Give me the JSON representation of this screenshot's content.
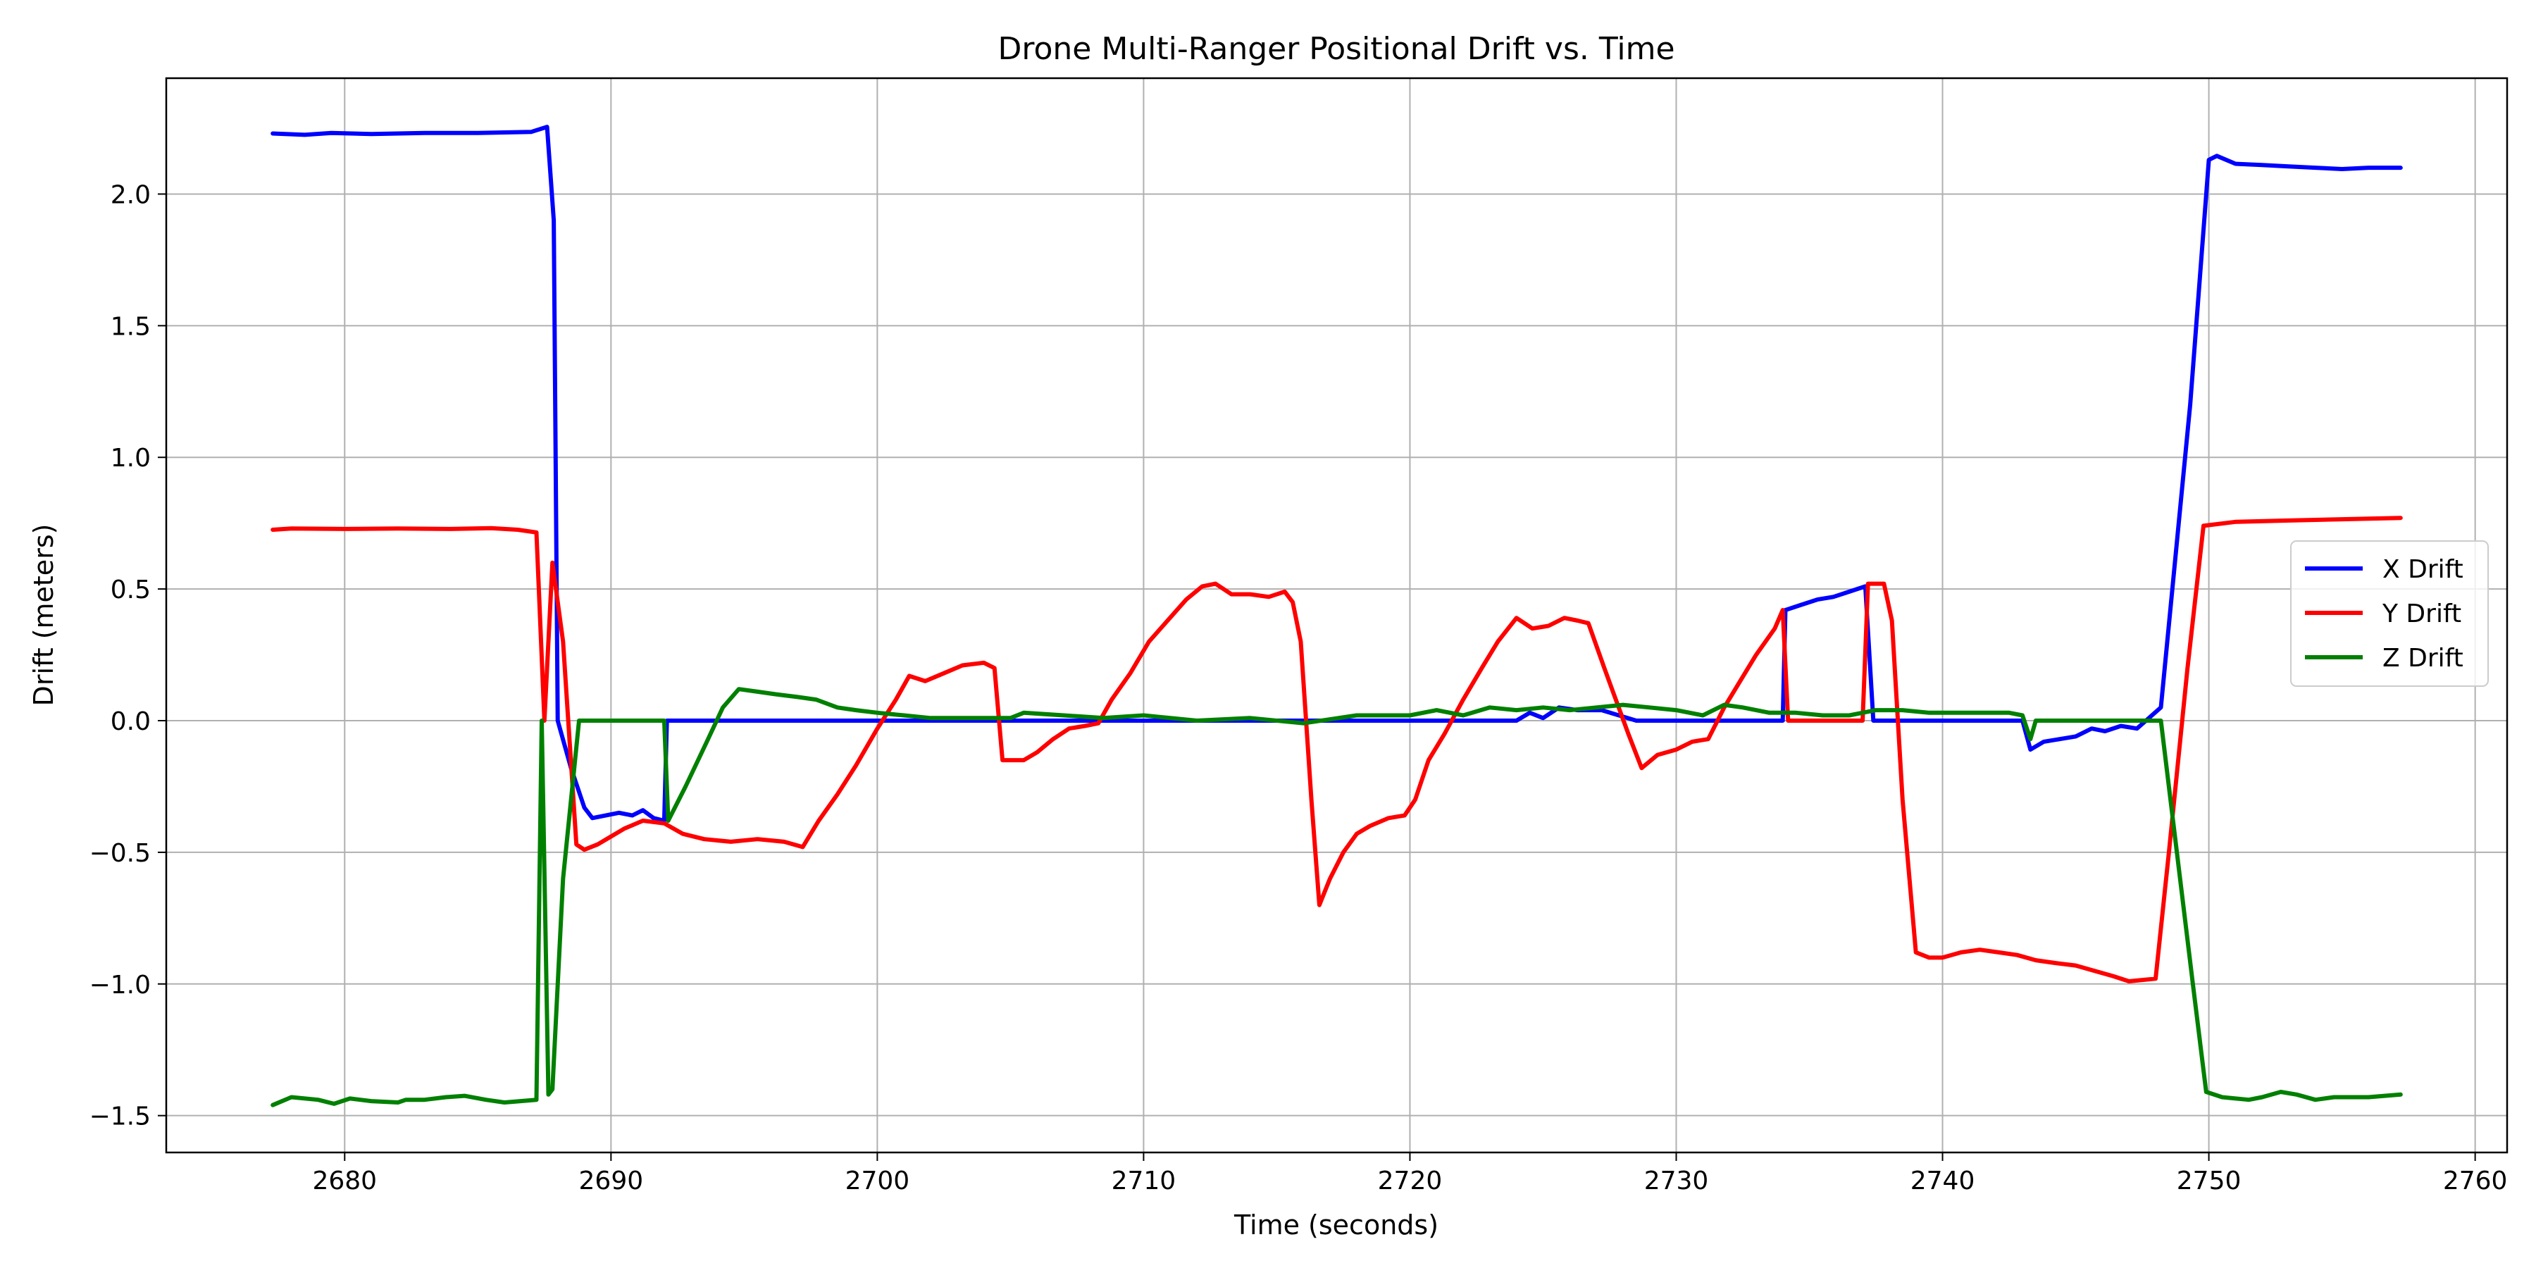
{
  "chart_data": {
    "type": "line",
    "title": "Drone Multi-Ranger Positional Drift vs. Time",
    "xlabel": "Time (seconds)",
    "ylabel": "Drift (meters)",
    "xlim": [
      2673.3,
      2761.2
    ],
    "ylim": [
      -1.64,
      2.44
    ],
    "x_ticks": [
      2680,
      2690,
      2700,
      2710,
      2720,
      2730,
      2740,
      2750,
      2760
    ],
    "y_ticks": [
      -1.5,
      -1.0,
      -0.5,
      0.0,
      0.5,
      1.0,
      1.5,
      2.0
    ],
    "x_tick_labels": [
      "2680",
      "2690",
      "2700",
      "2710",
      "2720",
      "2730",
      "2740",
      "2750",
      "2760"
    ],
    "y_tick_labels": [
      "−1.5",
      "−1.0",
      "−0.5",
      "0.0",
      "0.5",
      "1.0",
      "1.5",
      "2.0"
    ],
    "grid": true,
    "legend_position": "center-right",
    "series": [
      {
        "name": "X Drift",
        "color": "#0000ff",
        "points": [
          [
            2677.3,
            2.23
          ],
          [
            2678.5,
            2.225
          ],
          [
            2679.5,
            2.232
          ],
          [
            2681.0,
            2.228
          ],
          [
            2683.0,
            2.232
          ],
          [
            2685.0,
            2.232
          ],
          [
            2687.0,
            2.236
          ],
          [
            2687.6,
            2.255
          ],
          [
            2687.85,
            1.9
          ],
          [
            2688.0,
            0.0
          ],
          [
            2688.5,
            -0.18
          ],
          [
            2689.0,
            -0.33
          ],
          [
            2689.3,
            -0.37
          ],
          [
            2689.8,
            -0.36
          ],
          [
            2690.3,
            -0.35
          ],
          [
            2690.8,
            -0.36
          ],
          [
            2691.2,
            -0.34
          ],
          [
            2691.6,
            -0.37
          ],
          [
            2692.0,
            -0.38
          ],
          [
            2692.1,
            0.0
          ],
          [
            2700.0,
            0.0
          ],
          [
            2715.0,
            0.0
          ],
          [
            2724.0,
            0.0
          ],
          [
            2724.5,
            0.03
          ],
          [
            2725.0,
            0.01
          ],
          [
            2725.6,
            0.05
          ],
          [
            2726.3,
            0.04
          ],
          [
            2727.2,
            0.04
          ],
          [
            2728.5,
            0.0
          ],
          [
            2734.0,
            0.0
          ],
          [
            2734.1,
            0.42
          ],
          [
            2734.7,
            0.44
          ],
          [
            2735.3,
            0.46
          ],
          [
            2735.9,
            0.47
          ],
          [
            2736.5,
            0.49
          ],
          [
            2737.1,
            0.51
          ],
          [
            2737.4,
            0.0
          ],
          [
            2743.0,
            0.0
          ],
          [
            2743.3,
            -0.11
          ],
          [
            2743.8,
            -0.08
          ],
          [
            2744.4,
            -0.07
          ],
          [
            2745.0,
            -0.06
          ],
          [
            2745.6,
            -0.03
          ],
          [
            2746.1,
            -0.04
          ],
          [
            2746.7,
            -0.02
          ],
          [
            2747.3,
            -0.03
          ],
          [
            2748.2,
            0.05
          ],
          [
            2749.3,
            1.2
          ],
          [
            2750.0,
            2.13
          ],
          [
            2750.3,
            2.145
          ],
          [
            2751.0,
            2.115
          ],
          [
            2752.0,
            2.11
          ],
          [
            2753.0,
            2.105
          ],
          [
            2754.0,
            2.1
          ],
          [
            2755.0,
            2.095
          ],
          [
            2756.0,
            2.1
          ],
          [
            2757.2,
            2.1
          ]
        ]
      },
      {
        "name": "Y Drift",
        "color": "#ff0000",
        "points": [
          [
            2677.3,
            0.725
          ],
          [
            2678.0,
            0.73
          ],
          [
            2680.0,
            0.728
          ],
          [
            2682.0,
            0.73
          ],
          [
            2684.0,
            0.728
          ],
          [
            2685.5,
            0.731
          ],
          [
            2686.5,
            0.725
          ],
          [
            2687.2,
            0.715
          ],
          [
            2687.5,
            0.0
          ],
          [
            2687.8,
            0.6
          ],
          [
            2688.2,
            0.3
          ],
          [
            2688.7,
            -0.47
          ],
          [
            2689.0,
            -0.49
          ],
          [
            2689.5,
            -0.47
          ],
          [
            2690.0,
            -0.44
          ],
          [
            2690.5,
            -0.41
          ],
          [
            2691.2,
            -0.38
          ],
          [
            2692.0,
            -0.39
          ],
          [
            2692.7,
            -0.43
          ],
          [
            2693.5,
            -0.45
          ],
          [
            2694.5,
            -0.46
          ],
          [
            2695.5,
            -0.45
          ],
          [
            2696.5,
            -0.46
          ],
          [
            2697.2,
            -0.48
          ],
          [
            2697.8,
            -0.38
          ],
          [
            2698.5,
            -0.28
          ],
          [
            2699.2,
            -0.17
          ],
          [
            2700.0,
            -0.03
          ],
          [
            2700.7,
            0.08
          ],
          [
            2701.2,
            0.17
          ],
          [
            2701.8,
            0.15
          ],
          [
            2702.5,
            0.18
          ],
          [
            2703.2,
            0.21
          ],
          [
            2704.0,
            0.22
          ],
          [
            2704.4,
            0.2
          ],
          [
            2704.7,
            -0.15
          ],
          [
            2705.5,
            -0.15
          ],
          [
            2706.0,
            -0.12
          ],
          [
            2706.6,
            -0.07
          ],
          [
            2707.2,
            -0.03
          ],
          [
            2707.8,
            -0.02
          ],
          [
            2708.3,
            -0.01
          ],
          [
            2708.8,
            0.08
          ],
          [
            2709.5,
            0.18
          ],
          [
            2710.2,
            0.3
          ],
          [
            2710.9,
            0.38
          ],
          [
            2711.6,
            0.46
          ],
          [
            2712.2,
            0.51
          ],
          [
            2712.7,
            0.52
          ],
          [
            2713.3,
            0.48
          ],
          [
            2714.0,
            0.48
          ],
          [
            2714.7,
            0.47
          ],
          [
            2715.3,
            0.49
          ],
          [
            2715.6,
            0.45
          ],
          [
            2715.9,
            0.3
          ],
          [
            2716.3,
            -0.3
          ],
          [
            2716.6,
            -0.7
          ],
          [
            2717.0,
            -0.6
          ],
          [
            2717.5,
            -0.5
          ],
          [
            2718.0,
            -0.43
          ],
          [
            2718.5,
            -0.4
          ],
          [
            2719.2,
            -0.37
          ],
          [
            2719.8,
            -0.36
          ],
          [
            2720.2,
            -0.3
          ],
          [
            2720.7,
            -0.15
          ],
          [
            2721.3,
            -0.05
          ],
          [
            2722.0,
            0.08
          ],
          [
            2722.7,
            0.2
          ],
          [
            2723.3,
            0.3
          ],
          [
            2724.0,
            0.39
          ],
          [
            2724.6,
            0.35
          ],
          [
            2725.2,
            0.36
          ],
          [
            2725.8,
            0.39
          ],
          [
            2726.3,
            0.38
          ],
          [
            2726.7,
            0.37
          ],
          [
            2727.3,
            0.2
          ],
          [
            2728.2,
            -0.05
          ],
          [
            2728.7,
            -0.18
          ],
          [
            2729.3,
            -0.13
          ],
          [
            2730.0,
            -0.11
          ],
          [
            2730.6,
            -0.08
          ],
          [
            2731.2,
            -0.07
          ],
          [
            2731.8,
            0.05
          ],
          [
            2732.4,
            0.15
          ],
          [
            2733.0,
            0.25
          ],
          [
            2733.7,
            0.35
          ],
          [
            2734.0,
            0.42
          ],
          [
            2734.2,
            0.0
          ],
          [
            2737.0,
            0.0
          ],
          [
            2737.2,
            0.52
          ],
          [
            2737.8,
            0.52
          ],
          [
            2738.1,
            0.38
          ],
          [
            2738.5,
            -0.3
          ],
          [
            2739.0,
            -0.88
          ],
          [
            2739.5,
            -0.9
          ],
          [
            2740.0,
            -0.9
          ],
          [
            2740.7,
            -0.88
          ],
          [
            2741.4,
            -0.87
          ],
          [
            2742.1,
            -0.88
          ],
          [
            2742.8,
            -0.89
          ],
          [
            2743.5,
            -0.91
          ],
          [
            2744.2,
            -0.92
          ],
          [
            2745.0,
            -0.93
          ],
          [
            2745.7,
            -0.95
          ],
          [
            2746.4,
            -0.97
          ],
          [
            2747.0,
            -0.99
          ],
          [
            2748.0,
            -0.98
          ],
          [
            2748.5,
            -0.5
          ],
          [
            2749.2,
            0.2
          ],
          [
            2749.8,
            0.74
          ],
          [
            2751.0,
            0.755
          ],
          [
            2753.0,
            0.76
          ],
          [
            2755.0,
            0.765
          ],
          [
            2757.2,
            0.77
          ]
        ]
      },
      {
        "name": "Z Drift",
        "color": "#008000",
        "points": [
          [
            2677.3,
            -1.46
          ],
          [
            2678.0,
            -1.43
          ],
          [
            2679.0,
            -1.44
          ],
          [
            2679.6,
            -1.455
          ],
          [
            2680.2,
            -1.435
          ],
          [
            2681.0,
            -1.445
          ],
          [
            2682.0,
            -1.45
          ],
          [
            2682.3,
            -1.44
          ],
          [
            2683.0,
            -1.44
          ],
          [
            2683.8,
            -1.43
          ],
          [
            2684.5,
            -1.425
          ],
          [
            2685.3,
            -1.44
          ],
          [
            2686.0,
            -1.45
          ],
          [
            2687.2,
            -1.44
          ],
          [
            2687.4,
            0.0
          ],
          [
            2687.65,
            -1.42
          ],
          [
            2687.8,
            -1.4
          ],
          [
            2688.2,
            -0.6
          ],
          [
            2688.8,
            0.0
          ],
          [
            2692.0,
            0.0
          ],
          [
            2692.15,
            -0.38
          ],
          [
            2692.8,
            -0.25
          ],
          [
            2693.6,
            -0.08
          ],
          [
            2694.2,
            0.05
          ],
          [
            2694.8,
            0.12
          ],
          [
            2695.5,
            0.11
          ],
          [
            2696.2,
            0.1
          ],
          [
            2697.0,
            0.09
          ],
          [
            2697.7,
            0.08
          ],
          [
            2698.5,
            0.05
          ],
          [
            2699.2,
            0.04
          ],
          [
            2700.0,
            0.03
          ],
          [
            2701.0,
            0.02
          ],
          [
            2702.0,
            0.01
          ],
          [
            2703.5,
            0.01
          ],
          [
            2705.0,
            0.01
          ],
          [
            2705.5,
            0.03
          ],
          [
            2707.0,
            0.02
          ],
          [
            2708.5,
            0.01
          ],
          [
            2710.0,
            0.02
          ],
          [
            2712.0,
            0.0
          ],
          [
            2714.0,
            0.01
          ],
          [
            2716.0,
            -0.01
          ],
          [
            2718.0,
            0.02
          ],
          [
            2720.0,
            0.02
          ],
          [
            2721.0,
            0.04
          ],
          [
            2722.0,
            0.02
          ],
          [
            2723.0,
            0.05
          ],
          [
            2724.0,
            0.04
          ],
          [
            2725.0,
            0.05
          ],
          [
            2726.0,
            0.04
          ],
          [
            2727.0,
            0.05
          ],
          [
            2728.0,
            0.06
          ],
          [
            2729.0,
            0.05
          ],
          [
            2730.0,
            0.04
          ],
          [
            2731.0,
            0.02
          ],
          [
            2731.8,
            0.06
          ],
          [
            2732.5,
            0.05
          ],
          [
            2733.5,
            0.03
          ],
          [
            2734.5,
            0.03
          ],
          [
            2735.5,
            0.02
          ],
          [
            2736.5,
            0.02
          ],
          [
            2737.5,
            0.04
          ],
          [
            2738.5,
            0.04
          ],
          [
            2739.5,
            0.03
          ],
          [
            2740.5,
            0.03
          ],
          [
            2741.5,
            0.03
          ],
          [
            2742.5,
            0.03
          ],
          [
            2743.0,
            0.02
          ],
          [
            2743.3,
            -0.07
          ],
          [
            2743.5,
            0.0
          ],
          [
            2748.2,
            0.0
          ],
          [
            2748.8,
            -0.5
          ],
          [
            2749.4,
            -1.0
          ],
          [
            2749.9,
            -1.41
          ],
          [
            2750.5,
            -1.43
          ],
          [
            2751.5,
            -1.44
          ],
          [
            2752.0,
            -1.43
          ],
          [
            2752.7,
            -1.41
          ],
          [
            2753.3,
            -1.42
          ],
          [
            2754.0,
            -1.44
          ],
          [
            2754.7,
            -1.43
          ],
          [
            2756.0,
            -1.43
          ],
          [
            2757.2,
            -1.42
          ]
        ]
      }
    ]
  }
}
